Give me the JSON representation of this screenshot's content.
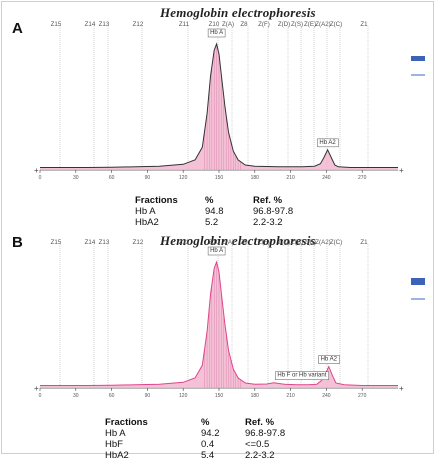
{
  "panels": [
    {
      "letter": "A",
      "title": "Hemoglobin electrophoresis",
      "zones": [
        "Z15",
        "Z14",
        "Z13",
        "Z12",
        "Z11",
        "Z10",
        "Z(A)",
        "Z8",
        "Z(F)",
        "Z(D)",
        "Z(S)",
        "Z(E)",
        "Z(A2)",
        "Z(C)",
        "Z1"
      ],
      "peak_labels": [
        "Hb A",
        "Hb A2"
      ],
      "table": {
        "headers": [
          "Fractions",
          "%",
          "Ref. %"
        ],
        "rows": [
          [
            "Hb A",
            "94.8",
            "96.8-97.8"
          ],
          [
            "HbA2",
            "5.2",
            "2.2-3.2"
          ]
        ]
      }
    },
    {
      "letter": "B",
      "title": "Hemoglobin electrophoresis",
      "zones": [
        "Z15",
        "Z14",
        "Z13",
        "Z12",
        "Z11",
        "Z10",
        "Z(A)",
        "Z9",
        "Z(F)",
        "Z(D)",
        "Z(S)",
        "Z(E)",
        "Z(A2)",
        "Z(C)",
        "Z1"
      ],
      "peak_labels": [
        "Hb A",
        "Hb F or Hb variant",
        "Hb A2"
      ],
      "table": {
        "headers": [
          "Fractions",
          "%",
          "Ref. %"
        ],
        "rows": [
          [
            "Hb A",
            "94.2",
            "96.8-97.8"
          ],
          [
            "HbF",
            "0.4",
            "<=0.5"
          ],
          [
            "HbA2",
            "5.4",
            "2.2-3.2"
          ]
        ]
      }
    }
  ],
  "chart_data": [
    {
      "type": "area",
      "title": "Hemoglobin electrophoresis",
      "xlim": [
        0,
        300
      ],
      "x_ticks": [
        0,
        30,
        60,
        90,
        120,
        150,
        180,
        210,
        240,
        270
      ],
      "series": [
        {
          "name": "Hb A",
          "x": [
            0,
            20,
            40,
            60,
            80,
            100,
            120,
            130,
            136,
            140,
            143,
            146,
            148,
            150,
            152,
            155,
            158,
            162,
            166,
            172,
            180,
            200,
            220,
            230,
            235,
            238,
            241,
            244,
            247,
            250,
            260,
            280,
            300
          ],
          "y": [
            2,
            2,
            2,
            2.2,
            2.5,
            3,
            4.5,
            8,
            18,
            45,
            75,
            95,
            100,
            92,
            75,
            50,
            30,
            15,
            8,
            4,
            3,
            2.5,
            2.5,
            3,
            5,
            10,
            16,
            10,
            4,
            2.5,
            2,
            2,
            2
          ]
        }
      ],
      "peaks": [
        {
          "label": "Hb A",
          "x": 148,
          "percent": 94.8
        },
        {
          "label": "Hb A2",
          "x": 241,
          "percent": 5.2
        }
      ],
      "fill_color": "#f2b6cf",
      "line_color": "#333333"
    },
    {
      "type": "area",
      "title": "Hemoglobin electrophoresis",
      "xlim": [
        0,
        300
      ],
      "x_ticks": [
        0,
        30,
        60,
        90,
        120,
        150,
        180,
        210,
        240,
        270
      ],
      "series": [
        {
          "name": "Hb A",
          "x": [
            0,
            20,
            40,
            60,
            80,
            100,
            120,
            130,
            136,
            140,
            143,
            146,
            148,
            150,
            152,
            155,
            158,
            162,
            166,
            172,
            180,
            190,
            196,
            200,
            205,
            215,
            225,
            232,
            236,
            239,
            242,
            245,
            248,
            255,
            270,
            300
          ],
          "y": [
            2,
            2,
            2,
            2.2,
            2.5,
            3,
            4.5,
            8,
            18,
            45,
            75,
            95,
            100,
            92,
            75,
            50,
            30,
            15,
            8,
            4,
            3,
            3.2,
            4.2,
            3.6,
            3,
            2.5,
            2.5,
            3,
            6,
            11,
            17,
            10,
            4,
            2.5,
            2,
            2
          ]
        }
      ],
      "peaks": [
        {
          "label": "Hb A",
          "x": 148,
          "percent": 94.2
        },
        {
          "label": "Hb F or Hb variant",
          "x": 196,
          "percent": 0.4
        },
        {
          "label": "Hb A2",
          "x": 242,
          "percent": 5.4
        }
      ],
      "fill_color": "#f2b6cf",
      "line_color": "#e0448c"
    }
  ]
}
